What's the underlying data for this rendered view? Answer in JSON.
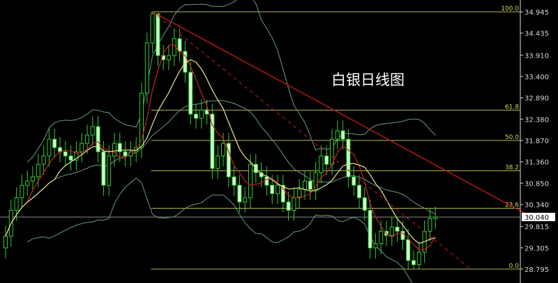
{
  "chart_data": {
    "type": "candlestick",
    "title": "白银日线图",
    "ylim": [
      28.795,
      34.945
    ],
    "yticks": [
      "34.945",
      "34.435",
      "33.910",
      "33.400",
      "32.890",
      "32.380",
      "31.870",
      "31.360",
      "30.850",
      "30.340",
      "29.815",
      "29.305",
      "28.795"
    ],
    "current_price": "30.040",
    "open": [
      29.3,
      29.58,
      30.2,
      30.5,
      30.8,
      30.9,
      31.0,
      31.3,
      31.5,
      31.9,
      31.7,
      31.6,
      31.5,
      31.4,
      31.6,
      31.8,
      32.0,
      32.2,
      31.6,
      30.8,
      31.5,
      31.8,
      31.6,
      31.5,
      31.6,
      31.7,
      33.0,
      34.2,
      34.9,
      33.9,
      33.8,
      33.9,
      34.3,
      34.0,
      33.5,
      32.5,
      32.4,
      32.6,
      32.5,
      31.2,
      31.5,
      31.8,
      31.0,
      30.8,
      30.4,
      30.5,
      31.3,
      31.1,
      31.0,
      30.8,
      30.6,
      30.8,
      30.4,
      30.2,
      30.5,
      30.7,
      30.9,
      30.7,
      31.1,
      31.5,
      31.3,
      31.9,
      32.1,
      31.9,
      31.0,
      30.8,
      30.5,
      30.2,
      29.3,
      29.4,
      29.7,
      29.6,
      29.8,
      29.7,
      29.5,
      29.0,
      28.9,
      29.2,
      29.7,
      30.0
    ],
    "high": [
      29.83,
      30.45,
      30.75,
      31.05,
      31.15,
      31.25,
      31.55,
      31.75,
      32.15,
      32.15,
      31.95,
      31.85,
      31.75,
      31.85,
      32.05,
      32.25,
      32.45,
      32.45,
      31.85,
      31.75,
      32.05,
      32.05,
      31.85,
      31.85,
      31.95,
      33.25,
      34.45,
      34.945,
      34.9,
      34.15,
      34.15,
      34.55,
      34.55,
      34.25,
      33.75,
      32.75,
      32.85,
      32.85,
      32.75,
      31.75,
      32.05,
      32.05,
      31.25,
      31.05,
      30.75,
      31.55,
      31.55,
      31.35,
      31.25,
      31.05,
      31.05,
      31.05,
      30.65,
      30.75,
      30.95,
      31.15,
      31.15,
      31.35,
      31.75,
      31.75,
      32.15,
      32.35,
      32.35,
      32.15,
      31.25,
      31.05,
      30.75,
      30.45,
      29.65,
      29.95,
      29.95,
      30.05,
      30.05,
      29.95,
      29.75,
      29.25,
      29.45,
      29.95,
      30.25,
      30.29
    ],
    "low": [
      29.05,
      29.33,
      29.95,
      30.25,
      30.55,
      30.65,
      30.75,
      31.05,
      31.25,
      31.45,
      31.35,
      31.25,
      31.15,
      31.15,
      31.35,
      31.55,
      31.75,
      31.35,
      30.55,
      30.55,
      31.25,
      31.35,
      31.25,
      31.25,
      31.35,
      31.45,
      32.75,
      33.95,
      33.65,
      33.55,
      33.55,
      33.65,
      33.75,
      33.25,
      32.25,
      32.15,
      32.15,
      32.25,
      30.95,
      30.95,
      31.25,
      30.75,
      30.55,
      30.15,
      30.15,
      30.25,
      30.85,
      30.75,
      30.55,
      30.35,
      30.35,
      30.15,
      29.95,
      29.95,
      30.25,
      30.45,
      30.45,
      30.45,
      30.85,
      31.05,
      31.05,
      31.65,
      31.65,
      30.75,
      30.55,
      30.25,
      29.95,
      29.05,
      29.05,
      29.15,
      29.35,
      29.35,
      29.45,
      29.25,
      28.8,
      28.795,
      28.8,
      28.95,
      29.45,
      29.75
    ],
    "close": [
      29.58,
      30.2,
      30.5,
      30.8,
      30.9,
      31.0,
      31.3,
      31.5,
      31.9,
      31.7,
      31.6,
      31.5,
      31.4,
      31.6,
      31.8,
      32.0,
      32.2,
      31.6,
      30.8,
      31.5,
      31.8,
      31.6,
      31.5,
      31.6,
      31.7,
      33.0,
      34.2,
      34.9,
      33.9,
      33.8,
      33.9,
      34.3,
      34.0,
      33.5,
      32.5,
      32.4,
      32.6,
      32.5,
      31.2,
      31.5,
      31.8,
      31.0,
      30.8,
      30.4,
      30.5,
      31.3,
      31.1,
      31.0,
      30.8,
      30.6,
      30.8,
      30.4,
      30.2,
      30.5,
      30.7,
      30.9,
      30.7,
      31.1,
      31.5,
      31.3,
      31.9,
      32.1,
      31.9,
      31.0,
      30.8,
      30.5,
      30.2,
      29.3,
      29.4,
      29.7,
      29.6,
      29.8,
      29.7,
      29.5,
      29.0,
      28.9,
      29.2,
      29.7,
      30.0,
      30.04
    ],
    "fibonacci": {
      "anchor_bar": 27,
      "levels": [
        {
          "label": "100.0",
          "price": 34.945
        },
        {
          "label": "61.8",
          "price": 32.595
        },
        {
          "label": "50.0",
          "price": 31.87
        },
        {
          "label": "38.2",
          "price": 31.145
        },
        {
          "label": "23.6",
          "price": 30.25
        },
        {
          "label": "0.0",
          "price": 28.795
        }
      ]
    },
    "trendlines": [
      {
        "style": "solid",
        "from": {
          "bar": 27,
          "price": 34.945
        },
        "to": {
          "bar": 96.4,
          "price": 30.06
        }
      },
      {
        "style": "dashed",
        "from": {
          "bar": 27,
          "price": 34.945
        },
        "to": {
          "bar": 85.5,
          "price": 28.795
        }
      }
    ],
    "indicators": {
      "ma_fast": 5,
      "ma_slow": 10,
      "bollinger_period": 20,
      "bollinger_k": 2
    },
    "colors": {
      "background": "#000000",
      "candle": "#33cc33",
      "candle_down_fill": "#ccffcc",
      "ma_fast": "#cc2222",
      "ma_slow": "#e8e890",
      "bollinger": "#6a9a86",
      "fib": "#d8d860",
      "trend": "#b01818",
      "axis": "#d8d8d8"
    }
  }
}
